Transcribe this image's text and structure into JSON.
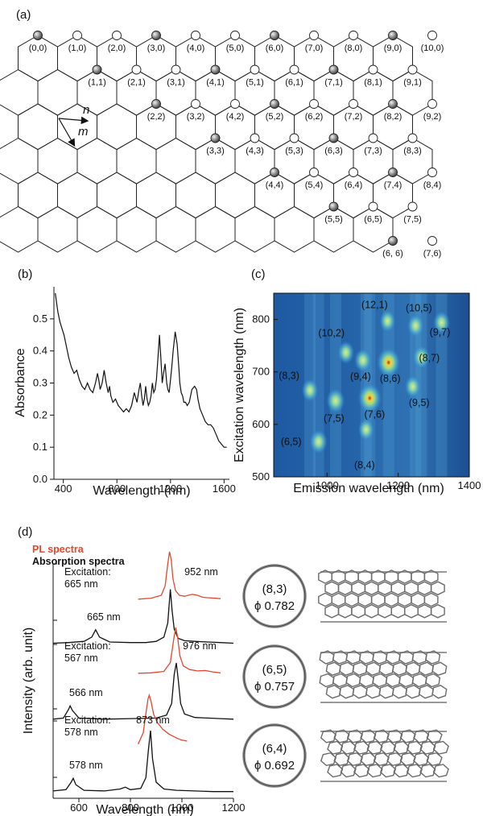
{
  "panels": {
    "a": "(a)",
    "b": "(b)",
    "c": "(c)",
    "d": "(d)"
  },
  "colors": {
    "pl": "#e8452c",
    "absorption": "#111111",
    "map_background": "#1a4f94"
  },
  "chart_data": [
    {
      "type": "diagram",
      "panel": "(a)",
      "title": "",
      "vector_labels": {
        "n": "n",
        "m": "m"
      },
      "indices": [
        {
          "label": "(0,0)",
          "metallic": true
        },
        {
          "label": "(1,0)",
          "metallic": false
        },
        {
          "label": "(2,0)",
          "metallic": false
        },
        {
          "label": "(3,0)",
          "metallic": true
        },
        {
          "label": "(4,0)",
          "metallic": false
        },
        {
          "label": "(5,0)",
          "metallic": false
        },
        {
          "label": "(6,0)",
          "metallic": true
        },
        {
          "label": "(7,0)",
          "metallic": false
        },
        {
          "label": "(8,0)",
          "metallic": false
        },
        {
          "label": "(9,0)",
          "metallic": true
        },
        {
          "label": "(10,0)",
          "metallic": false
        },
        {
          "label": "(1,1)",
          "metallic": true
        },
        {
          "label": "(2,1)",
          "metallic": false
        },
        {
          "label": "(3,1)",
          "metallic": false
        },
        {
          "label": "(4,1)",
          "metallic": true
        },
        {
          "label": "(5,1)",
          "metallic": false
        },
        {
          "label": "(6,1)",
          "metallic": false
        },
        {
          "label": "(7,1)",
          "metallic": true
        },
        {
          "label": "(8,1)",
          "metallic": false
        },
        {
          "label": "(9,1)",
          "metallic": false
        },
        {
          "label": "(2,2)",
          "metallic": true
        },
        {
          "label": "(3,2)",
          "metallic": false
        },
        {
          "label": "(4,2)",
          "metallic": false
        },
        {
          "label": "(5,2)",
          "metallic": true
        },
        {
          "label": "(6,2)",
          "metallic": false
        },
        {
          "label": "(7,2)",
          "metallic": false
        },
        {
          "label": "(8,2)",
          "metallic": true
        },
        {
          "label": "(9,2)",
          "metallic": false
        },
        {
          "label": "(3,3)",
          "metallic": true
        },
        {
          "label": "(4,3)",
          "metallic": false
        },
        {
          "label": "(5,3)",
          "metallic": false
        },
        {
          "label": "(6,3)",
          "metallic": true
        },
        {
          "label": "(7,3)",
          "metallic": false
        },
        {
          "label": "(8,3)",
          "metallic": false
        },
        {
          "label": "(4,4)",
          "metallic": true
        },
        {
          "label": "(5,4)",
          "metallic": false
        },
        {
          "label": "(6,4)",
          "metallic": false
        },
        {
          "label": "(7,4)",
          "metallic": true
        },
        {
          "label": "(8,4)",
          "metallic": false
        },
        {
          "label": "(5,5)",
          "metallic": true
        },
        {
          "label": "(6,5)",
          "metallic": false
        },
        {
          "label": "(7,5)",
          "metallic": false
        },
        {
          "label": "(6, 6)",
          "metallic": true
        },
        {
          "label": "(7,6)",
          "metallic": false
        }
      ]
    },
    {
      "type": "line",
      "panel": "(b)",
      "title": "",
      "xlabel": "Wavelength (nm)",
      "ylabel": "Absorbance",
      "xlim": [
        330,
        1640
      ],
      "ylim": [
        0,
        0.6
      ],
      "xticks": [
        400,
        800,
        1200,
        1600
      ],
      "yticks": [
        0.0,
        0.1,
        0.2,
        0.3,
        0.4,
        0.5
      ],
      "series": [
        {
          "x": [
            340,
            350,
            360,
            375,
            390,
            405,
            420,
            440,
            460,
            480,
            500,
            520,
            540,
            560,
            580,
            600,
            620,
            640,
            655,
            665,
            675,
            690,
            705,
            720,
            735,
            745,
            755,
            770,
            790,
            810,
            830,
            850,
            870,
            890,
            910,
            930,
            950,
            965,
            975,
            985,
            995,
            1005,
            1015,
            1025,
            1035,
            1045,
            1055,
            1065,
            1075,
            1085,
            1095,
            1105,
            1118,
            1128,
            1138,
            1148,
            1160,
            1172,
            1180,
            1190,
            1200,
            1210,
            1220,
            1235,
            1250,
            1262,
            1270,
            1280,
            1290,
            1300,
            1312,
            1325,
            1340,
            1360,
            1380,
            1395,
            1405,
            1420,
            1440,
            1460,
            1480,
            1500,
            1520,
            1540,
            1560,
            1580,
            1600,
            1620
          ],
          "y": [
            0.58,
            0.55,
            0.52,
            0.49,
            0.47,
            0.45,
            0.42,
            0.38,
            0.35,
            0.33,
            0.34,
            0.31,
            0.29,
            0.28,
            0.3,
            0.28,
            0.27,
            0.3,
            0.33,
            0.31,
            0.28,
            0.3,
            0.34,
            0.3,
            0.27,
            0.29,
            0.26,
            0.24,
            0.25,
            0.23,
            0.22,
            0.21,
            0.22,
            0.21,
            0.23,
            0.27,
            0.24,
            0.28,
            0.3,
            0.26,
            0.23,
            0.25,
            0.29,
            0.25,
            0.23,
            0.24,
            0.26,
            0.3,
            0.27,
            0.28,
            0.31,
            0.37,
            0.45,
            0.38,
            0.3,
            0.33,
            0.36,
            0.3,
            0.28,
            0.27,
            0.31,
            0.35,
            0.4,
            0.46,
            0.42,
            0.35,
            0.3,
            0.27,
            0.26,
            0.24,
            0.24,
            0.23,
            0.24,
            0.28,
            0.29,
            0.28,
            0.25,
            0.22,
            0.2,
            0.18,
            0.17,
            0.17,
            0.16,
            0.14,
            0.12,
            0.11,
            0.1,
            0.1
          ]
        }
      ]
    },
    {
      "type": "heatmap",
      "panel": "(c)",
      "title": "",
      "xlabel": "Emission wavelength (nm)",
      "ylabel": "Excitation wavelength (nm)",
      "xlim": [
        850,
        1400
      ],
      "ylim": [
        500,
        850
      ],
      "xticks": [
        1000,
        1200,
        1400
      ],
      "yticks": [
        500,
        600,
        700,
        800
      ],
      "spots": [
        {
          "label": "(6,5)",
          "emission": 976,
          "excitation": 567,
          "intensity": 0.55
        },
        {
          "label": "(8,3)",
          "emission": 952,
          "excitation": 665,
          "intensity": 0.45
        },
        {
          "label": "(7,5)",
          "emission": 1024,
          "excitation": 645,
          "intensity": 0.6
        },
        {
          "label": "(7,6)",
          "emission": 1120,
          "excitation": 650,
          "intensity": 1.0
        },
        {
          "label": "(8,4)",
          "emission": 1110,
          "excitation": 590,
          "intensity": 0.4
        },
        {
          "label": "(10,2)",
          "emission": 1053,
          "excitation": 737,
          "intensity": 0.45
        },
        {
          "label": "(9,4)",
          "emission": 1101,
          "excitation": 722,
          "intensity": 0.5
        },
        {
          "label": "(8,6)",
          "emission": 1173,
          "excitation": 718,
          "intensity": 1.0
        },
        {
          "label": "(9,5)",
          "emission": 1241,
          "excitation": 672,
          "intensity": 0.4
        },
        {
          "label": "(8,7)",
          "emission": 1265,
          "excitation": 728,
          "intensity": 0.5
        },
        {
          "label": "(12,1)",
          "emission": 1170,
          "excitation": 797,
          "intensity": 0.4
        },
        {
          "label": "(10,5)",
          "emission": 1249,
          "excitation": 788,
          "intensity": 0.45
        },
        {
          "label": "(9,7)",
          "emission": 1322,
          "excitation": 794,
          "intensity": 0.45
        }
      ]
    },
    {
      "type": "line",
      "panel": "(d)",
      "title": "",
      "xlabel": "Wavelength (nm)",
      "ylabel": "Intensity (arb. unit)",
      "xlim": [
        500,
        1200
      ],
      "xticks": [
        600,
        800,
        1000,
        1200
      ],
      "legend": [
        "PL spectra",
        "Absorption spectra"
      ],
      "groups": [
        {
          "excitation_label": "Excitation:",
          "excitation_wavelength": "665 nm",
          "pl_peak_label": "952 nm",
          "absorption_peak_label": "665 nm",
          "pl": {
            "x": [
              830,
              880,
              920,
              935,
              945,
              952,
              958,
              965,
              975,
              990,
              1010,
              1040,
              1060,
              1080,
              1100,
              1130,
              1150
            ],
            "y": [
              0.02,
              0.04,
              0.1,
              0.3,
              0.75,
              1.0,
              0.85,
              0.45,
              0.2,
              0.1,
              0.08,
              0.12,
              0.1,
              0.06,
              0.05,
              0.04,
              0.03
            ]
          },
          "absorption": {
            "x": [
              500,
              560,
              620,
              650,
              665,
              680,
              720,
              800,
              860,
              900,
              930,
              945,
              955,
              962,
              970,
              985,
              1010,
              1050,
              1100,
              1150,
              1200
            ],
            "y": [
              0.02,
              0.03,
              0.05,
              0.12,
              0.24,
              0.12,
              0.04,
              0.03,
              0.03,
              0.05,
              0.12,
              0.35,
              0.9,
              0.55,
              0.25,
              0.1,
              0.06,
              0.05,
              0.04,
              0.03,
              0.02
            ]
          }
        },
        {
          "excitation_label": "Excitation:",
          "excitation_wavelength": "567 nm",
          "pl_peak_label": "976 nm",
          "absorption_peak_label": "566 nm",
          "pl": {
            "x": [
              830,
              880,
              930,
              955,
              968,
              976,
              983,
              992,
              1005,
              1030,
              1060,
              1090,
              1120,
              1150
            ],
            "y": [
              0.02,
              0.03,
              0.06,
              0.25,
              0.75,
              1.0,
              0.8,
              0.4,
              0.18,
              0.1,
              0.07,
              0.08,
              0.05,
              0.03
            ]
          },
          "absorption": {
            "x": [
              500,
              540,
              560,
              566,
              575,
              600,
              700,
              800,
              900,
              940,
              960,
              970,
              978,
              986,
              995,
              1010,
              1050,
              1100,
              1150,
              1200
            ],
            "y": [
              0.03,
              0.05,
              0.2,
              0.26,
              0.18,
              0.05,
              0.03,
              0.04,
              0.05,
              0.1,
              0.3,
              0.8,
              1.0,
              0.7,
              0.3,
              0.12,
              0.06,
              0.05,
              0.04,
              0.03
            ]
          }
        },
        {
          "excitation_label": "Excitation:",
          "excitation_wavelength": "578 nm",
          "pl_peak_label": "873 nm",
          "absorption_peak_label": "578 nm",
          "pl": {
            "x": [
              830,
              850,
              862,
              868,
              873,
              880,
              890,
              905,
              925,
              950,
              980,
              1000,
              1020
            ],
            "y": [
              0.02,
              0.25,
              0.7,
              0.92,
              1.0,
              0.88,
              0.62,
              0.45,
              0.32,
              0.22,
              0.14,
              0.1,
              0.08
            ]
          },
          "absorption": {
            "x": [
              500,
              550,
              570,
              578,
              588,
              620,
              700,
              760,
              780,
              800,
              840,
              860,
              870,
              878,
              886,
              900,
              930,
              980,
              1050,
              1120,
              1200
            ],
            "y": [
              0.04,
              0.06,
              0.18,
              0.24,
              0.14,
              0.05,
              0.04,
              0.07,
              0.1,
              0.06,
              0.08,
              0.25,
              0.7,
              1.0,
              0.55,
              0.18,
              0.07,
              0.05,
              0.04,
              0.03,
              0.03
            ]
          }
        }
      ],
      "tubes": [
        {
          "chirality": "(8,3)",
          "phi": "ϕ 0.782"
        },
        {
          "chirality": "(6,5)",
          "phi": "ϕ 0.757"
        },
        {
          "chirality": "(6,4)",
          "phi": "ϕ 0.692"
        }
      ]
    }
  ]
}
